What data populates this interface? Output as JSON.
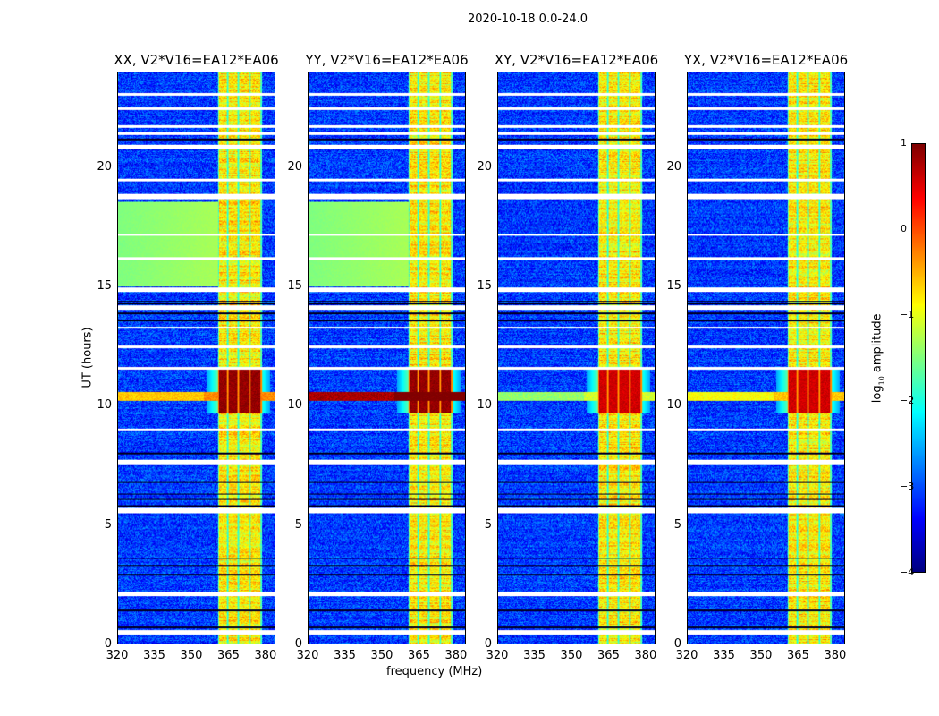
{
  "chart_data": {
    "type": "heatmap",
    "title": "2020-10-18 0.0-24.0",
    "xlabel": "frequency (MHz)",
    "ylabel": "UT (hours)",
    "xlim": [
      320,
      384
    ],
    "ylim": [
      0,
      24
    ],
    "xticks": [
      "320",
      "335",
      "350",
      "365",
      "380"
    ],
    "yticks": [
      "0",
      "5",
      "10",
      "15",
      "20"
    ],
    "colormap": "jet",
    "colorbar": {
      "label_main": "log",
      "label_sub": "10",
      "label_rest": " amplitude",
      "range": [
        -4,
        1
      ],
      "ticks": [
        "1",
        "0",
        "−1",
        "−2",
        "−3",
        "−4"
      ]
    },
    "panels": [
      {
        "title": "XX, V2*V16=EA12*EA06",
        "line_level": -0.6,
        "green_block": true,
        "event_level": 0.9
      },
      {
        "title": "YY, V2*V16=EA12*EA06",
        "line_level": 0.8,
        "green_block": true,
        "event_level": 0.9
      },
      {
        "title": "XY, V2*V16=EA12*EA06",
        "line_level": -1.4,
        "green_block": false,
        "event_level": 0.6
      },
      {
        "title": "YX, V2*V16=EA12*EA06",
        "line_level": -0.9,
        "green_block": false,
        "event_level": 0.6
      }
    ],
    "background_level": -3.1,
    "rfi_band_mhz": [
      [
        361,
        364.3
      ],
      [
        365,
        368.5
      ],
      [
        369.3,
        373.2
      ],
      [
        374,
        378.2
      ]
    ],
    "rfi_band_level": -0.8,
    "strong_event_hours": [
      9.7,
      11.6
    ],
    "bright_line_hours": [
      10.2,
      10.6
    ],
    "green_block_hours": [
      15.0,
      18.6
    ],
    "flagged_hours": [
      0.45,
      0.55,
      2.05,
      2.15,
      5.55,
      5.65,
      7.6,
      7.7,
      9.0,
      11.6,
      12.5,
      13.3,
      14.1,
      14.2,
      14.85,
      14.95,
      16.2,
      17.2,
      18.75,
      18.85,
      19.5,
      20.85,
      20.95,
      21.45,
      21.75,
      22.5,
      23.1
    ],
    "dark_hours": [
      0.7,
      1.4,
      2.9,
      3.3,
      3.6,
      5.8,
      6.1,
      6.3,
      6.8,
      8.0,
      13.6,
      13.9,
      14.3,
      14.4,
      21.2
    ]
  }
}
